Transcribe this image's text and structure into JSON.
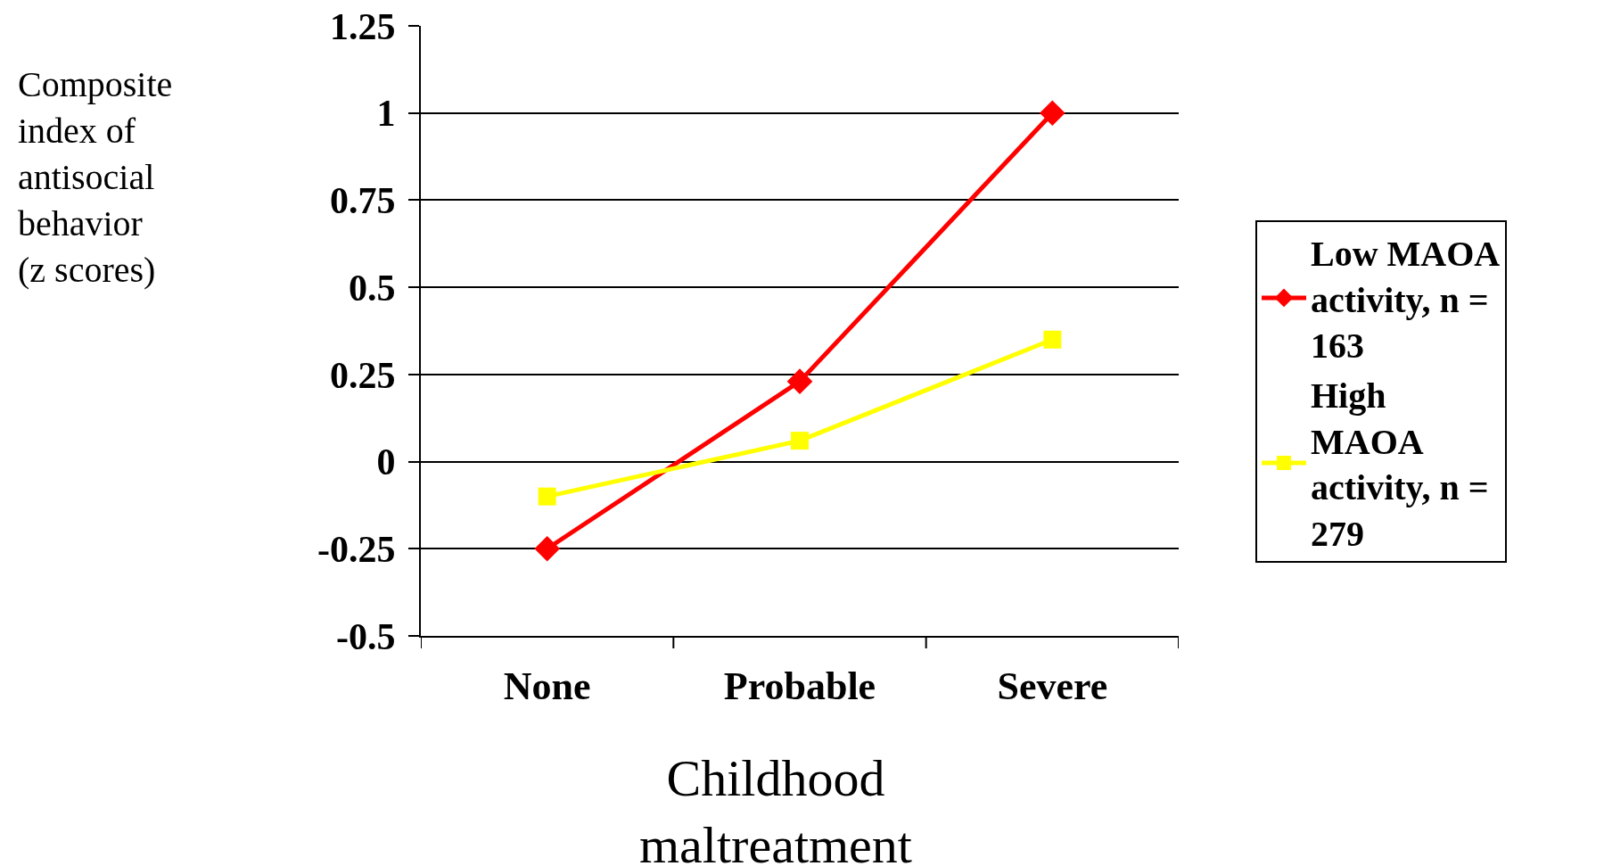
{
  "chart_data": {
    "type": "line",
    "ylabel": "Composite index of antisocial behavior (z scores)",
    "xlabel": "Childhood maltreatment",
    "categories": [
      "None",
      "Probable",
      "Severe"
    ],
    "series": [
      {
        "name": "Low MAOA activity, n = 163",
        "color": "#ff0000",
        "marker": "diamond",
        "values": [
          -0.25,
          0.23,
          1
        ]
      },
      {
        "name": "High MAOA activity, n = 279",
        "color": "#ffff00",
        "marker": "square",
        "values": [
          -0.1,
          0.06,
          0.35
        ]
      }
    ],
    "ylim": [
      -0.5,
      1.25
    ],
    "yticks": [
      -0.5,
      -0.25,
      0,
      0.25,
      0.5,
      0.75,
      1,
      1.25
    ],
    "grid": "y",
    "legend": "right",
    "line_style": "solid"
  }
}
